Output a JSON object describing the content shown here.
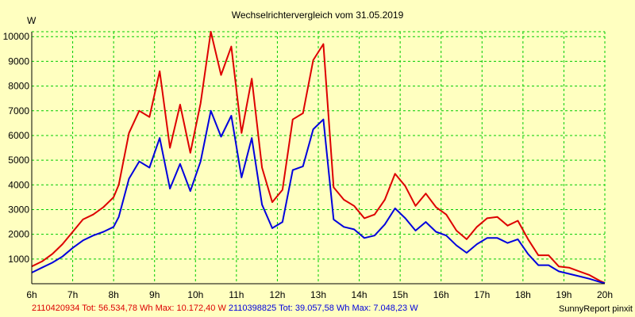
{
  "chart_data": {
    "type": "line",
    "title": "Wechselrichtervergleich vom 31.05.2019",
    "ylabel": "W",
    "xlabel": "",
    "ylim": [
      0,
      10200
    ],
    "xlim": [
      6,
      20
    ],
    "grid": true,
    "y_ticks": [
      "1000",
      "2000",
      "3000",
      "4000",
      "5000",
      "6000",
      "7000",
      "8000",
      "9000",
      "10000"
    ],
    "x_ticks": [
      "6h",
      "7h",
      "8h",
      "9h",
      "10h",
      "11h",
      "12h",
      "13h",
      "14h",
      "15h",
      "16h",
      "17h",
      "18h",
      "19h",
      "20h"
    ],
    "x": [
      6.0,
      6.25,
      6.5,
      6.75,
      7.0,
      7.25,
      7.5,
      7.75,
      8.0,
      8.125,
      8.375,
      8.625,
      8.875,
      9.125,
      9.375,
      9.625,
      9.875,
      10.125,
      10.375,
      10.625,
      10.875,
      11.125,
      11.375,
      11.625,
      11.875,
      12.125,
      12.375,
      12.625,
      12.875,
      13.125,
      13.375,
      13.625,
      13.875,
      14.125,
      14.375,
      14.625,
      14.875,
      15.125,
      15.375,
      15.625,
      15.875,
      16.125,
      16.375,
      16.625,
      16.875,
      17.125,
      17.375,
      17.625,
      17.875,
      18.125,
      18.375,
      18.625,
      18.875,
      19.125,
      19.375,
      19.625,
      19.875,
      20.0
    ],
    "series": [
      {
        "color": "#dd0000",
        "values": [
          700,
          900,
          1200,
          1600,
          2100,
          2600,
          2800,
          3100,
          3500,
          4000,
          6100,
          7000,
          6750,
          8600,
          5500,
          7250,
          5300,
          7300,
          10200,
          8450,
          9600,
          6100,
          8300,
          4700,
          3300,
          3800,
          6650,
          6900,
          9050,
          9700,
          3900,
          3400,
          3150,
          2650,
          2800,
          3400,
          4450,
          3950,
          3150,
          3650,
          3100,
          2800,
          2150,
          1800,
          2300,
          2650,
          2700,
          2350,
          2550,
          1800,
          1150,
          1150,
          700,
          650,
          500,
          350,
          120,
          30
        ]
      },
      {
        "color": "#0000dd",
        "values": [
          450,
          650,
          850,
          1100,
          1450,
          1750,
          1950,
          2100,
          2300,
          2700,
          4250,
          4950,
          4700,
          5900,
          3850,
          4850,
          3750,
          4950,
          7000,
          5950,
          6800,
          4300,
          5900,
          3200,
          2250,
          2500,
          4600,
          4750,
          6250,
          6650,
          2600,
          2300,
          2200,
          1850,
          1950,
          2400,
          3050,
          2650,
          2150,
          2500,
          2100,
          1950,
          1550,
          1250,
          1600,
          1850,
          1850,
          1650,
          1800,
          1200,
          750,
          750,
          500,
          400,
          300,
          200,
          70,
          20
        ]
      }
    ]
  },
  "footer": {
    "series1_id": "2110420934",
    "series1_stats": " Tot: 56.534,78 Wh Max: 10.172,40 W ",
    "series2_id": "2110398825",
    "series2_stats": " Tot: 39.057,58 Wh Max: 7.048,23 W",
    "credit": "SunnyReport pinxit"
  },
  "colors": {
    "background": "#ffffc0",
    "grid": "#00cc00",
    "axis": "#000000"
  }
}
